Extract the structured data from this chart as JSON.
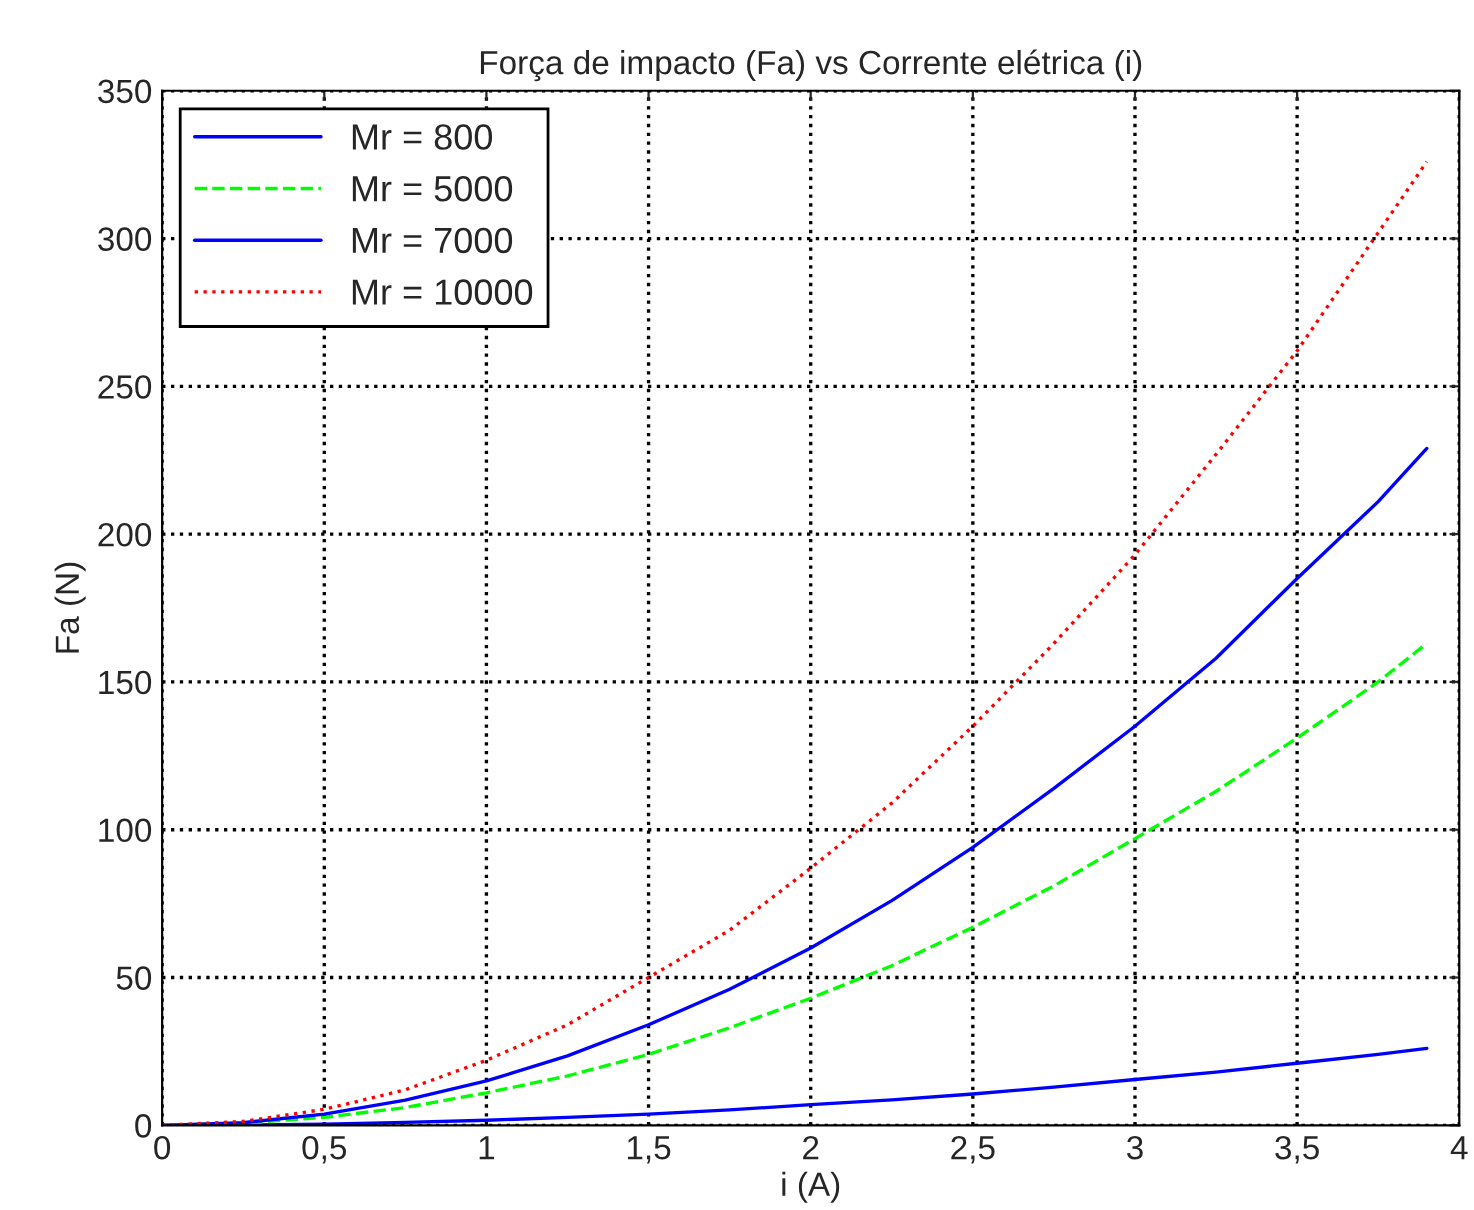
{
  "chart_data": {
    "type": "line",
    "title": "Força de impacto (Fa) vs Corrente elétrica (i)",
    "xlabel": "i (A)",
    "ylabel": "Fa (N)",
    "x": [
      0,
      0.25,
      0.5,
      0.75,
      1,
      1.25,
      1.5,
      1.75,
      2,
      2.25,
      2.5,
      2.75,
      3,
      3.25,
      3.5,
      3.75,
      3.9
    ],
    "series": [
      {
        "name": "Mr = 800",
        "color": "#0000ff",
        "line_style": "solid",
        "values": [
          0,
          0.1,
          0.4,
          1,
          1.7,
          2.7,
          3.8,
          5.2,
          7,
          8.6,
          10.6,
          12.9,
          15.5,
          18,
          21,
          24,
          26
        ]
      },
      {
        "name": "Mr = 5000",
        "color": "#00ff00",
        "line_style": "dashed",
        "values": [
          0,
          0.7,
          2.7,
          6,
          11,
          16.7,
          24,
          33,
          43,
          54,
          67,
          81,
          97,
          113,
          131,
          150,
          163
        ]
      },
      {
        "name": "Mr = 7000",
        "color": "#0000ff",
        "line_style": "solid",
        "values": [
          0,
          0.9,
          3.8,
          8.5,
          15,
          23.5,
          34,
          46,
          60,
          76,
          94,
          114,
          135,
          158,
          185,
          211,
          229
        ]
      },
      {
        "name": "Mr = 10000",
        "color": "#ff0000",
        "line_style": "dotted",
        "values": [
          0,
          1.3,
          5.4,
          12,
          22,
          34,
          50,
          66,
          87,
          109,
          135,
          163,
          193,
          227,
          262,
          302,
          326
        ]
      }
    ],
    "xlim": [
      0,
      4
    ],
    "ylim": [
      0,
      350
    ],
    "xticks": [
      0,
      {
        "value": 0.5,
        "label": "0,5"
      },
      1,
      {
        "value": 1.5,
        "label": "1,5"
      },
      2,
      {
        "value": 2.5,
        "label": "2,5"
      },
      3,
      {
        "value": 3.5,
        "label": "3,5"
      },
      4
    ],
    "yticks": [
      0,
      50,
      100,
      150,
      200,
      250,
      300,
      350
    ],
    "grid": true,
    "legend": "top left"
  }
}
